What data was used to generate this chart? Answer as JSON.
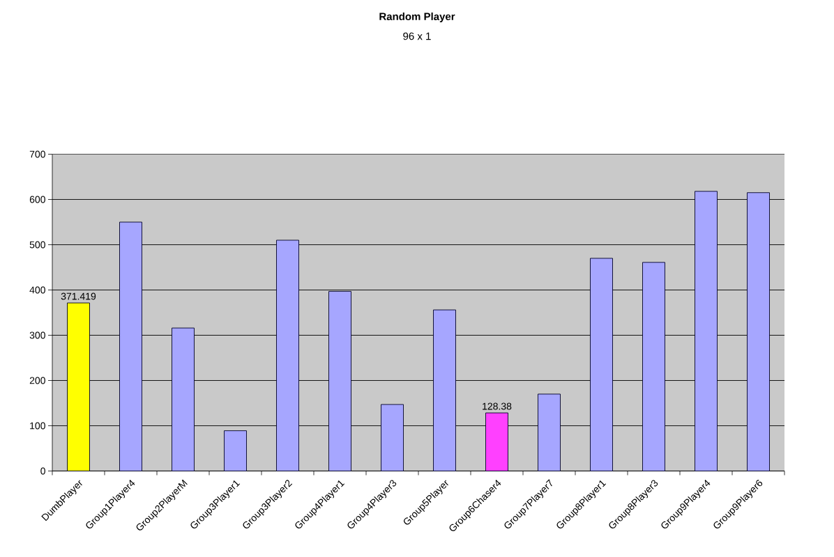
{
  "chart_data": {
    "type": "bar",
    "title": "Random Player",
    "subtitle": "96 x 1",
    "categories": [
      "DumbPlayer",
      "Group1Player4",
      "Group2PlayerM",
      "Group3Player1",
      "Group3Player2",
      "Group4Player1",
      "Group4Player3",
      "Group5Player",
      "Group6Chaser4",
      "Group7Player7",
      "Group8Player1",
      "Group8Player3",
      "Group9Player4",
      "Group9Player6"
    ],
    "values": [
      371.419,
      550,
      316,
      89,
      510,
      397,
      147,
      356,
      128.38,
      170,
      470,
      461,
      618,
      615
    ],
    "colors": [
      "#ffff00",
      "#a6a6ff",
      "#a6a6ff",
      "#a6a6ff",
      "#a6a6ff",
      "#a6a6ff",
      "#a6a6ff",
      "#a6a6ff",
      "#ff40ff",
      "#a6a6ff",
      "#a6a6ff",
      "#a6a6ff",
      "#a6a6ff",
      "#a6a6ff"
    ],
    "value_labels": [
      "371.419",
      null,
      null,
      null,
      null,
      null,
      null,
      null,
      "128.38",
      null,
      null,
      null,
      null,
      null
    ],
    "ylim": [
      0,
      700
    ],
    "yticks": [
      0,
      100,
      200,
      300,
      400,
      500,
      600,
      700
    ],
    "grid": "y"
  }
}
